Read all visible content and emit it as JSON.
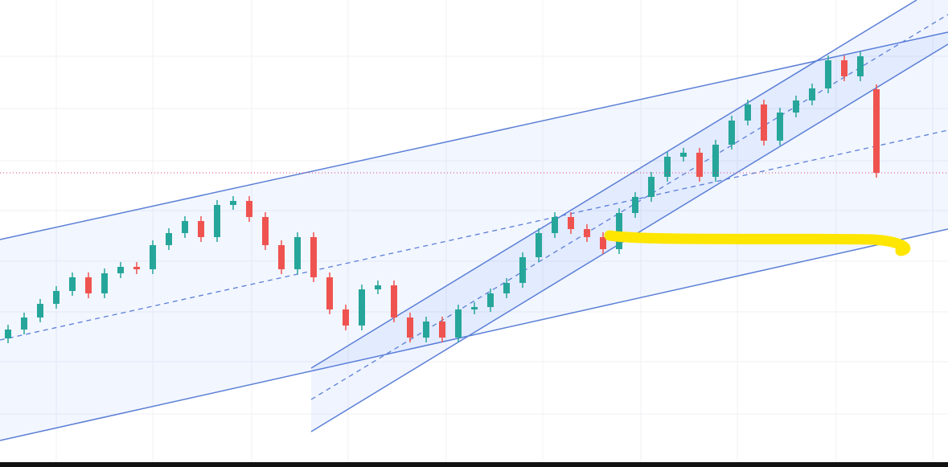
{
  "chart_data": {
    "type": "candlestick",
    "ylim": [
      0,
      581
    ],
    "up_color": "#26a69a",
    "down_color": "#ef5350",
    "open": [
      160,
      171,
      186,
      203,
      219,
      236,
      216,
      241,
      249,
      246,
      276,
      291,
      306,
      286,
      326,
      331,
      311,
      276,
      246,
      286,
      236,
      196,
      176,
      221,
      226,
      186,
      161,
      181,
      161,
      196,
      199,
      216,
      229,
      261,
      291,
      311,
      296,
      286,
      271,
      316,
      336,
      361,
      386,
      391,
      361,
      401,
      431,
      451,
      406,
      441,
      456,
      471,
      506,
      486,
      470
    ],
    "high": [
      177,
      192,
      209,
      225,
      242,
      242,
      247,
      255,
      255,
      282,
      297,
      312,
      312,
      332,
      337,
      337,
      317,
      282,
      292,
      292,
      242,
      202,
      227,
      232,
      232,
      192,
      187,
      187,
      202,
      205,
      222,
      235,
      267,
      297,
      317,
      317,
      302,
      292,
      322,
      342,
      367,
      392,
      397,
      397,
      407,
      437,
      457,
      457,
      447,
      462,
      477,
      512,
      512,
      517,
      476
    ],
    "low": [
      154,
      165,
      180,
      197,
      213,
      210,
      210,
      235,
      240,
      240,
      270,
      285,
      280,
      280,
      320,
      305,
      270,
      240,
      240,
      230,
      190,
      170,
      170,
      215,
      180,
      155,
      155,
      155,
      155,
      190,
      193,
      210,
      223,
      255,
      285,
      290,
      280,
      265,
      265,
      310,
      330,
      355,
      380,
      355,
      355,
      395,
      425,
      400,
      400,
      435,
      450,
      465,
      480,
      480,
      360
    ],
    "close": [
      171,
      186,
      203,
      219,
      236,
      216,
      241,
      249,
      246,
      276,
      291,
      306,
      286,
      326,
      331,
      311,
      276,
      246,
      286,
      236,
      196,
      176,
      221,
      226,
      186,
      161,
      181,
      161,
      196,
      199,
      216,
      229,
      261,
      291,
      311,
      296,
      286,
      271,
      316,
      336,
      361,
      386,
      391,
      361,
      401,
      431,
      451,
      406,
      441,
      456,
      471,
      506,
      486,
      511,
      366
    ]
  }
}
